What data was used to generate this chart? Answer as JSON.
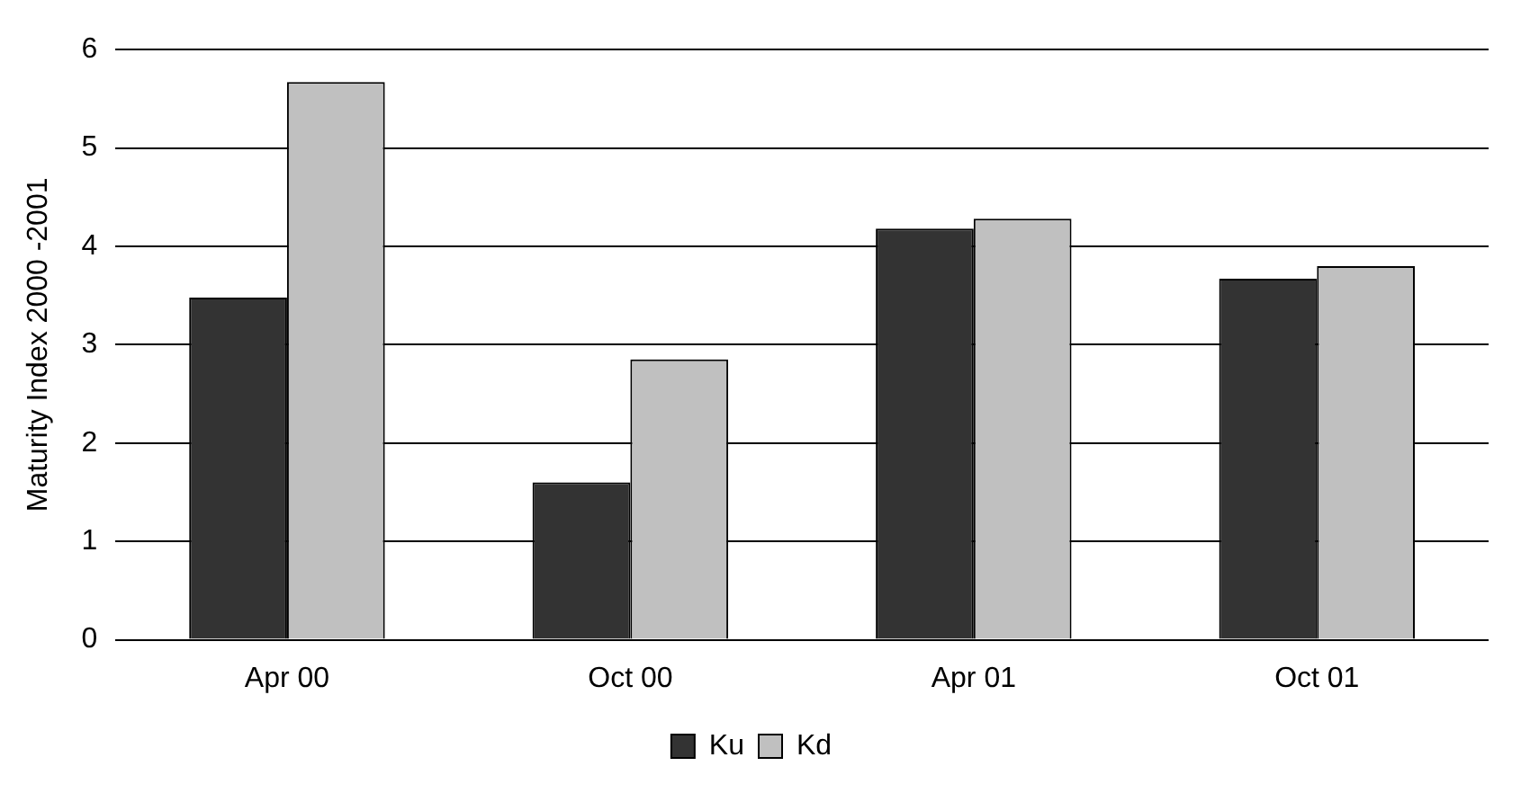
{
  "chart_data": {
    "type": "bar",
    "ylabel": "Maturity Index 2000 -2001",
    "categories": [
      "Apr 00",
      "Oct 00",
      "Apr 01",
      "Oct 01"
    ],
    "series": [
      {
        "name": "Ku",
        "color": "#333333",
        "values": [
          3.48,
          1.6,
          4.18,
          3.67
        ]
      },
      {
        "name": "Kd",
        "color": "#c0c0c0",
        "values": [
          5.67,
          2.85,
          4.28,
          3.8
        ]
      }
    ],
    "ylim": [
      0,
      6
    ],
    "yticks": [
      0,
      1,
      2,
      3,
      4,
      5,
      6
    ],
    "grid": "y",
    "legend": "bottom"
  }
}
